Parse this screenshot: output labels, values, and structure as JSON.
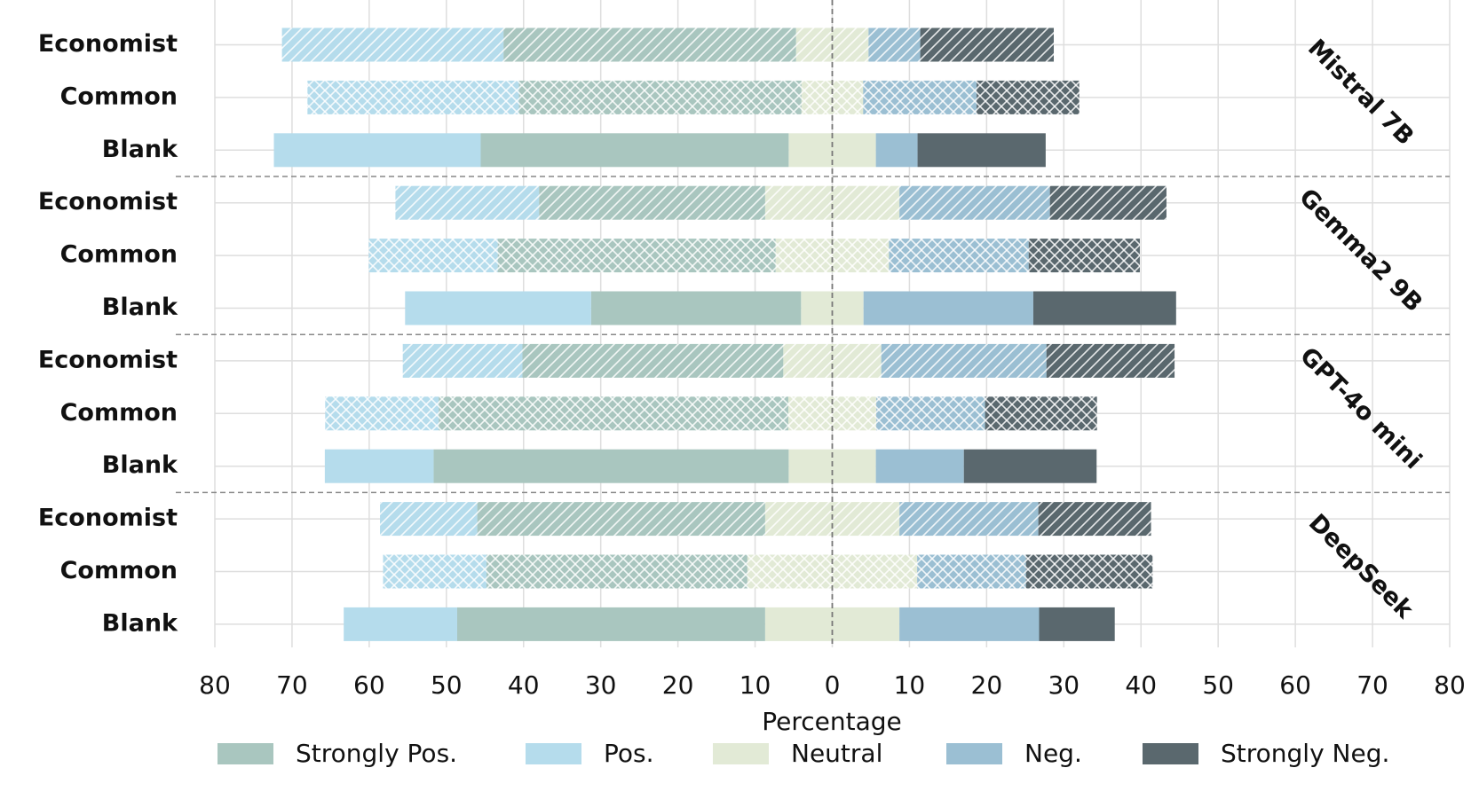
{
  "chart_data": {
    "type": "diverging_bar",
    "x_label": "Percentage",
    "categories": [
      "Economist",
      "Common",
      "Blank",
      "Economist",
      "Common",
      "Blank",
      "Economist",
      "Common",
      "Blank",
      "Economist",
      "Common",
      "Blank"
    ],
    "groups": [
      "Mistral 7B",
      "Gemma2 9B",
      "GPT-4o mini",
      "DeepSeek"
    ],
    "hatch": [
      "diagonal",
      "cross",
      "none",
      "diagonal",
      "cross",
      "none",
      "diagonal",
      "cross",
      "none",
      "diagonal",
      "cross",
      "none"
    ],
    "series": [
      {
        "name": "Strongly Pos.",
        "color": "#a9c6bf",
        "side": "left",
        "values": [
          37.9,
          36.6,
          39.9,
          29.3,
          36.0,
          27.2,
          33.8,
          45.3,
          46.0,
          37.3,
          33.8,
          39.9
        ]
      },
      {
        "name": "Pos.",
        "color": "#b5dcec",
        "side": "left",
        "values": [
          28.7,
          27.4,
          26.8,
          18.6,
          16.7,
          24.1,
          15.5,
          14.7,
          14.1,
          12.6,
          13.4,
          14.7
        ]
      },
      {
        "name": "Neutral",
        "color": "#e2ead6",
        "side": "center",
        "values": [
          9.4,
          8.0,
          11.3,
          17.4,
          14.7,
          8.1,
          12.7,
          11.4,
          11.3,
          17.4,
          22.0,
          17.4
        ]
      },
      {
        "name": "Neg.",
        "color": "#9bbfd3",
        "side": "right",
        "values": [
          6.7,
          14.7,
          5.4,
          19.5,
          18.1,
          22.0,
          21.4,
          14.1,
          11.4,
          18.0,
          14.1,
          18.1
        ]
      },
      {
        "name": "Strongly Neg.",
        "color": "#5a686e",
        "side": "right",
        "values": [
          17.3,
          13.3,
          16.6,
          15.1,
          14.4,
          18.5,
          16.6,
          14.5,
          17.2,
          14.6,
          16.4,
          9.8
        ]
      }
    ],
    "xlim": [
      -80,
      80
    ],
    "xticks": [
      {
        "value": -80,
        "label": "80"
      },
      {
        "value": -70,
        "label": "70"
      },
      {
        "value": -60,
        "label": "60"
      },
      {
        "value": -50,
        "label": "50"
      },
      {
        "value": -40,
        "label": "40"
      },
      {
        "value": -30,
        "label": "30"
      },
      {
        "value": -20,
        "label": "20"
      },
      {
        "value": -10,
        "label": "10"
      },
      0,
      10,
      20,
      30,
      40,
      50,
      60,
      70,
      80
    ],
    "grid": true
  }
}
